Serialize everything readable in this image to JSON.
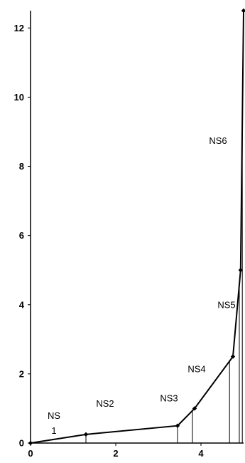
{
  "chart_data": {
    "type": "line",
    "title": "",
    "xlabel": "",
    "ylabel": "",
    "xlim": [
      0,
      5
    ],
    "ylim": [
      0,
      12.5
    ],
    "x_ticks": [
      0,
      2,
      4
    ],
    "y_ticks": [
      0,
      2,
      4,
      6,
      8,
      10,
      12
    ],
    "grid": false,
    "series": [
      {
        "x": [
          0,
          1.3,
          3.45,
          3.85,
          4.75,
          4.93,
          5.0
        ],
        "y": [
          0,
          0.25,
          0.5,
          1.0,
          2.5,
          5.0,
          12.5
        ]
      }
    ],
    "drop_lines_x": [
      1.3,
      3.45,
      3.8,
      4.67,
      4.9,
      4.97
    ],
    "annotations": [
      {
        "lines": [
          "NS",
          "1"
        ],
        "x": 0.55,
        "y": 0.7
      },
      {
        "lines": [
          "NS2"
        ],
        "x": 1.75,
        "y": 1.05
      },
      {
        "lines": [
          "NS3"
        ],
        "x": 3.25,
        "y": 1.2
      },
      {
        "lines": [
          "NS4"
        ],
        "x": 3.9,
        "y": 2.05
      },
      {
        "lines": [
          "NS5"
        ],
        "x": 4.6,
        "y": 3.9
      },
      {
        "lines": [
          "NS6"
        ],
        "x": 4.4,
        "y": 8.65
      }
    ]
  }
}
